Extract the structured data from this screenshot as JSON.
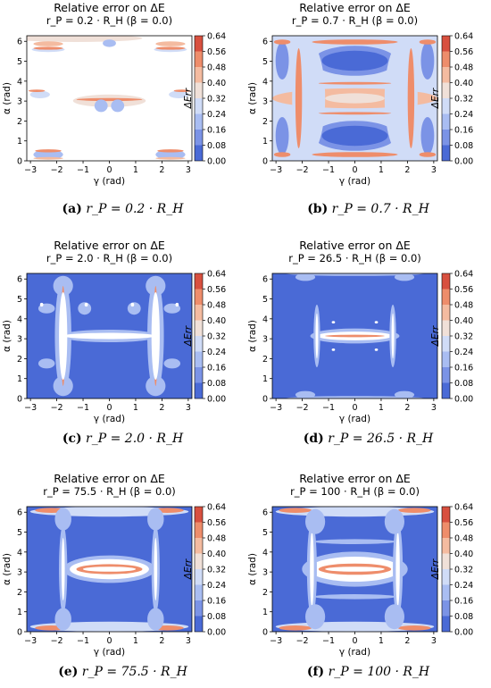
{
  "colorbar": {
    "label": "ΔErr",
    "ticks": [
      "0.00",
      "0.08",
      "0.16",
      "0.24",
      "0.32",
      "0.40",
      "0.48",
      "0.56",
      "0.64"
    ],
    "colors": [
      "#4a6ad6",
      "#7b93e6",
      "#a9bdf2",
      "#d0dcf7",
      "#f0e0d8",
      "#f4bba0",
      "#ee8d6b",
      "#d8503f"
    ]
  },
  "chart_data": [
    {
      "type": "heatmap",
      "title": "Relative error on ΔE",
      "subtitle": "r_P = 0.2 · R_H (β = 0.0)",
      "xlabel": "γ (rad)",
      "ylabel": "α (rad)",
      "xlim": [
        -3.14,
        3.14
      ],
      "ylim": [
        0,
        6.28
      ],
      "xticks": [
        "−3",
        "−2",
        "−1",
        "0",
        "1",
        "2",
        "3"
      ],
      "yticks": [
        "0",
        "1",
        "2",
        "3",
        "4",
        "5",
        "6"
      ],
      "caption_label": "(a)",
      "caption_math": "r_P = 0.2 · R_H"
    },
    {
      "type": "heatmap",
      "title": "Relative error on ΔE",
      "subtitle": "r_P = 0.7 · R_H (β = 0.0)",
      "xlabel": "γ (rad)",
      "ylabel": "α (rad)",
      "xlim": [
        -3.14,
        3.14
      ],
      "ylim": [
        0,
        6.28
      ],
      "xticks": [
        "−3",
        "−2",
        "−1",
        "0",
        "1",
        "2",
        "3"
      ],
      "yticks": [
        "0",
        "1",
        "2",
        "3",
        "4",
        "5",
        "6"
      ],
      "caption_label": "(b)",
      "caption_math": "r_P = 0.7 · R_H"
    },
    {
      "type": "heatmap",
      "title": "Relative error on ΔE",
      "subtitle": "r_P = 2.0 · R_H (β = 0.0)",
      "xlabel": "γ (rad)",
      "ylabel": "α (rad)",
      "xlim": [
        -3.14,
        3.14
      ],
      "ylim": [
        0,
        6.28
      ],
      "xticks": [
        "−3",
        "−2",
        "−1",
        "0",
        "1",
        "2",
        "3"
      ],
      "yticks": [
        "0",
        "1",
        "2",
        "3",
        "4",
        "5",
        "6"
      ],
      "caption_label": "(c)",
      "caption_math": "r_P = 2.0 · R_H"
    },
    {
      "type": "heatmap",
      "title": "Relative error on ΔE",
      "subtitle": "r_P = 26.5 · R_H (β = 0.0)",
      "xlabel": "γ (rad)",
      "ylabel": "α (rad)",
      "xlim": [
        -3.14,
        3.14
      ],
      "ylim": [
        0,
        6.28
      ],
      "xticks": [
        "−3",
        "−2",
        "−1",
        "0",
        "1",
        "2",
        "3"
      ],
      "yticks": [
        "0",
        "1",
        "2",
        "3",
        "4",
        "5",
        "6"
      ],
      "caption_label": "(d)",
      "caption_math": "r_P = 26.5 · R_H"
    },
    {
      "type": "heatmap",
      "title": "Relative error on ΔE",
      "subtitle": "r_P = 75.5 · R_H (β = 0.0)",
      "xlabel": "γ (rad)",
      "ylabel": "α (rad)",
      "xlim": [
        -3.14,
        3.14
      ],
      "ylim": [
        0,
        6.28
      ],
      "xticks": [
        "−3",
        "−2",
        "−1",
        "0",
        "1",
        "2",
        "3"
      ],
      "yticks": [
        "0",
        "1",
        "2",
        "3",
        "4",
        "5",
        "6"
      ],
      "caption_label": "(e)",
      "caption_math": "r_P = 75.5 · R_H"
    },
    {
      "type": "heatmap",
      "title": "Relative error on ΔE",
      "subtitle": "r_P = 100 · R_H (β = 0.0)",
      "xlabel": "γ (rad)",
      "ylabel": "α (rad)",
      "xlim": [
        -3.14,
        3.14
      ],
      "ylim": [
        0,
        6.28
      ],
      "xticks": [
        "−3",
        "−2",
        "−1",
        "0",
        "1",
        "2",
        "3"
      ],
      "yticks": [
        "0",
        "1",
        "2",
        "3",
        "4",
        "5",
        "6"
      ],
      "caption_label": "(f)",
      "caption_math": "r_P = 100 · R_H"
    }
  ]
}
